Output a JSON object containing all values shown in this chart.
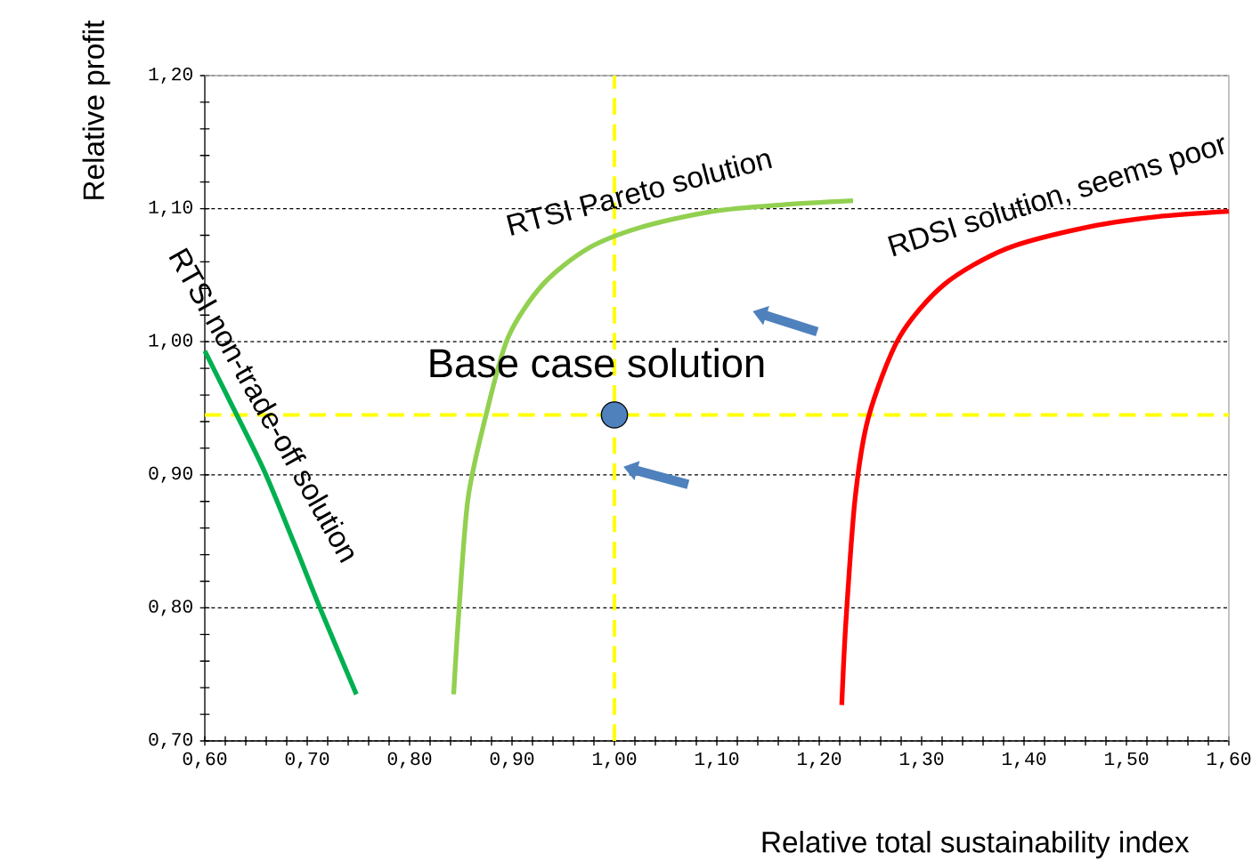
{
  "chart_data": {
    "type": "line",
    "xlabel": "Relative total sustainability index",
    "ylabel": "Relative profit",
    "xlim": [
      0.6,
      1.6
    ],
    "ylim": [
      0.7,
      1.2
    ],
    "xticks": [
      {
        "value": 0.6,
        "label": "0,60"
      },
      {
        "value": 0.62,
        "label": null
      },
      {
        "value": 0.64,
        "label": null
      },
      {
        "value": 0.66,
        "label": null
      },
      {
        "value": 0.68,
        "label": null
      },
      {
        "value": 0.7,
        "label": "0,70"
      },
      {
        "value": 0.72,
        "label": null
      },
      {
        "value": 0.74,
        "label": null
      },
      {
        "value": 0.76,
        "label": null
      },
      {
        "value": 0.78,
        "label": null
      },
      {
        "value": 0.8,
        "label": "0,80"
      },
      {
        "value": 0.82,
        "label": null
      },
      {
        "value": 0.84,
        "label": null
      },
      {
        "value": 0.86,
        "label": null
      },
      {
        "value": 0.88,
        "label": null
      },
      {
        "value": 0.9,
        "label": "0,90"
      },
      {
        "value": 0.92,
        "label": null
      },
      {
        "value": 0.94,
        "label": null
      },
      {
        "value": 0.96,
        "label": null
      },
      {
        "value": 0.98,
        "label": null
      },
      {
        "value": 1.0,
        "label": "1,00"
      },
      {
        "value": 1.02,
        "label": null
      },
      {
        "value": 1.04,
        "label": null
      },
      {
        "value": 1.06,
        "label": null
      },
      {
        "value": 1.08,
        "label": null
      },
      {
        "value": 1.1,
        "label": "1,10"
      },
      {
        "value": 1.12,
        "label": null
      },
      {
        "value": 1.14,
        "label": null
      },
      {
        "value": 1.16,
        "label": null
      },
      {
        "value": 1.18,
        "label": null
      },
      {
        "value": 1.2,
        "label": "1,20"
      },
      {
        "value": 1.22,
        "label": null
      },
      {
        "value": 1.24,
        "label": null
      },
      {
        "value": 1.26,
        "label": null
      },
      {
        "value": 1.28,
        "label": null
      },
      {
        "value": 1.3,
        "label": "1,30"
      },
      {
        "value": 1.32,
        "label": null
      },
      {
        "value": 1.34,
        "label": null
      },
      {
        "value": 1.36,
        "label": null
      },
      {
        "value": 1.38,
        "label": null
      },
      {
        "value": 1.4,
        "label": "1,40"
      },
      {
        "value": 1.42,
        "label": null
      },
      {
        "value": 1.44,
        "label": null
      },
      {
        "value": 1.46,
        "label": null
      },
      {
        "value": 1.48,
        "label": null
      },
      {
        "value": 1.5,
        "label": "1,50"
      },
      {
        "value": 1.52,
        "label": null
      },
      {
        "value": 1.54,
        "label": null
      },
      {
        "value": 1.56,
        "label": null
      },
      {
        "value": 1.58,
        "label": null
      },
      {
        "value": 1.6,
        "label": "1,60"
      }
    ],
    "yticks": [
      {
        "value": 0.7,
        "label": "0,70"
      },
      {
        "value": 0.72,
        "label": null
      },
      {
        "value": 0.74,
        "label": null
      },
      {
        "value": 0.76,
        "label": null
      },
      {
        "value": 0.78,
        "label": null
      },
      {
        "value": 0.8,
        "label": "0,80"
      },
      {
        "value": 0.82,
        "label": null
      },
      {
        "value": 0.84,
        "label": null
      },
      {
        "value": 0.86,
        "label": null
      },
      {
        "value": 0.88,
        "label": null
      },
      {
        "value": 0.9,
        "label": "0,90"
      },
      {
        "value": 0.92,
        "label": null
      },
      {
        "value": 0.94,
        "label": null
      },
      {
        "value": 0.96,
        "label": null
      },
      {
        "value": 0.98,
        "label": null
      },
      {
        "value": 1.0,
        "label": "1,00"
      },
      {
        "value": 1.02,
        "label": null
      },
      {
        "value": 1.04,
        "label": null
      },
      {
        "value": 1.06,
        "label": null
      },
      {
        "value": 1.08,
        "label": null
      },
      {
        "value": 1.1,
        "label": "1,10"
      },
      {
        "value": 1.12,
        "label": null
      },
      {
        "value": 1.14,
        "label": null
      },
      {
        "value": 1.16,
        "label": null
      },
      {
        "value": 1.18,
        "label": null
      },
      {
        "value": 1.2,
        "label": "1,20"
      }
    ],
    "grid": "y",
    "series": [
      {
        "name": "RTSI non-trade-off solution",
        "color": "#00b050",
        "x": [
          0.6,
          0.626,
          0.658,
          0.687,
          0.713,
          0.748
        ],
        "values": [
          0.993,
          0.953,
          0.903,
          0.849,
          0.799,
          0.735
        ]
      },
      {
        "name": "RTSI Pareto solution",
        "color": "#92d050",
        "x": [
          0.843,
          0.848,
          0.857,
          0.874,
          0.896,
          0.93,
          0.974,
          1.026,
          1.096,
          1.165,
          1.233
        ],
        "values": [
          0.735,
          0.796,
          0.882,
          0.943,
          1.003,
          1.043,
          1.07,
          1.086,
          1.098,
          1.103,
          1.106
        ]
      },
      {
        "name": "RDSI solution, seems poor",
        "color": "#ff0000",
        "x": [
          1.222,
          1.226,
          1.235,
          1.248,
          1.278,
          1.322,
          1.383,
          1.461,
          1.53,
          1.6
        ],
        "values": [
          0.727,
          0.789,
          0.882,
          0.943,
          1.003,
          1.043,
          1.07,
          1.086,
          1.094,
          1.098
        ]
      },
      {
        "type": "scatter",
        "marker": "circle",
        "color": "#4f81bd",
        "x": [
          1.0
        ],
        "values": [
          0.945
        ]
      }
    ],
    "ref_lines": [
      {
        "axis": "x",
        "value": 1.0,
        "color": "#ffff00",
        "line_style": "dashed"
      },
      {
        "axis": "y",
        "value": 0.945,
        "color": "#ffff00",
        "line_style": "dashed"
      }
    ],
    "annotations": [
      {
        "text": "Base case solution",
        "x": 1.0,
        "y": 0.945
      }
    ]
  }
}
